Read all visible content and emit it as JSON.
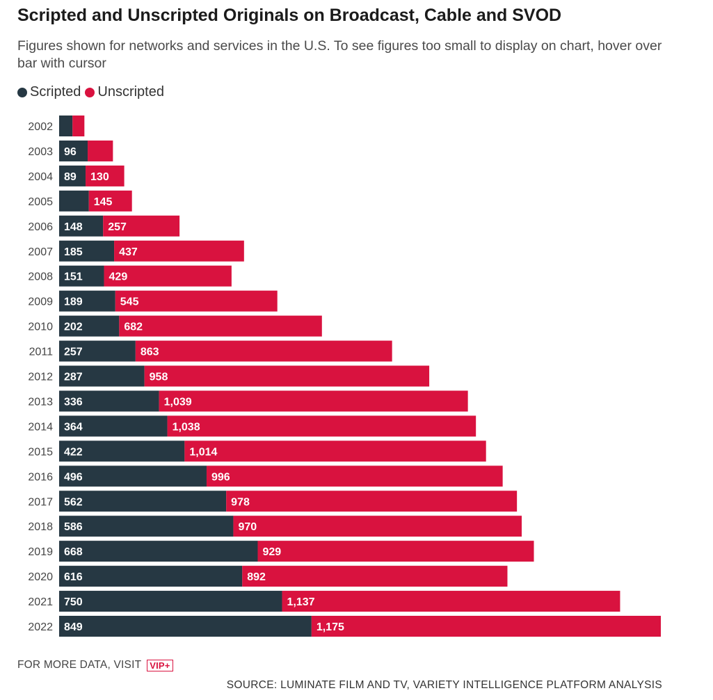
{
  "header": {
    "title": "Scripted and Unscripted Originals on Broadcast, Cable and SVOD",
    "subtitle": "Figures shown for networks and services in the U.S. To see figures too small to display on chart, hover over bar with cursor"
  },
  "legend": {
    "scripted_label": "Scripted",
    "unscripted_label": "Unscripted"
  },
  "colors": {
    "scripted": "#263843",
    "unscripted": "#d9123f"
  },
  "footer": {
    "more_data": "FOR MORE DATA, VISIT",
    "vip_badge": "VIP+",
    "source": "SOURCE: LUMINATE FILM AND TV, VARIETY INTELLIGENCE PLATFORM ANALYSIS"
  },
  "chart_data": {
    "type": "bar",
    "orientation": "horizontal",
    "stacked": true,
    "title": "Scripted and Unscripted Originals on Broadcast, Cable and SVOD",
    "categories": [
      "2002",
      "2003",
      "2004",
      "2005",
      "2006",
      "2007",
      "2008",
      "2009",
      "2010",
      "2011",
      "2012",
      "2013",
      "2014",
      "2015",
      "2016",
      "2017",
      "2018",
      "2019",
      "2020",
      "2021",
      "2022"
    ],
    "series": [
      {
        "name": "Scripted",
        "values": [
          45,
          96,
          89,
          100,
          148,
          185,
          151,
          189,
          202,
          257,
          287,
          336,
          364,
          422,
          496,
          562,
          586,
          668,
          616,
          750,
          849
        ],
        "labels": [
          "",
          "96",
          "89",
          "",
          "148",
          "185",
          "151",
          "189",
          "202",
          "257",
          "287",
          "336",
          "364",
          "422",
          "496",
          "562",
          "586",
          "668",
          "616",
          "750",
          "849"
        ]
      },
      {
        "name": "Unscripted",
        "values": [
          40,
          85,
          130,
          145,
          257,
          437,
          429,
          545,
          682,
          863,
          958,
          1039,
          1038,
          1014,
          996,
          978,
          970,
          929,
          892,
          1137,
          1175
        ],
        "labels": [
          "",
          "",
          "130",
          "145",
          "257",
          "437",
          "429",
          "545",
          "682",
          "863",
          "958",
          "1,039",
          "1,038",
          "1,014",
          "996",
          "978",
          "970",
          "929",
          "892",
          "1,137",
          "1,175"
        ]
      }
    ],
    "xlim": [
      0,
      2024
    ],
    "grid": false,
    "legend_position": "top-left"
  }
}
